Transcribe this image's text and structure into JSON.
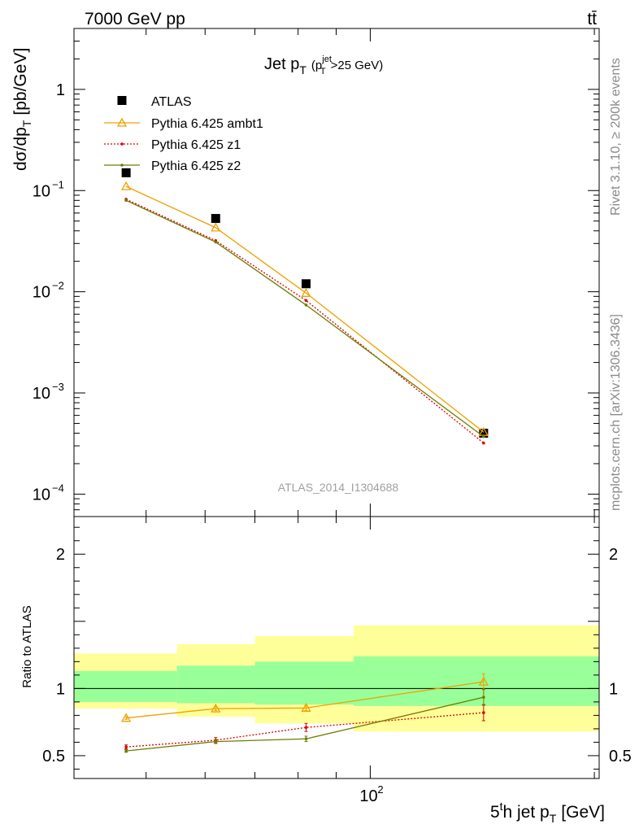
{
  "header": {
    "left": "7000 GeV pp",
    "right": "tt̄"
  },
  "side_text": {
    "rivet": "Rivet 3.1.10, ≥ 200k events",
    "mcplots": "mcplots.cern.ch [arXiv:1306.3436]"
  },
  "colors": {
    "ATLAS": "#000000",
    "Pythia 6.425 ambt1": "#f0a000",
    "Pythia 6.425 z1": "#e00000",
    "Pythia 6.425 z2": "#6e7d00",
    "band_outer": "#ffff99",
    "band_inner": "#99ff99"
  },
  "chart_data": [
    {
      "type": "scatter",
      "panel": "main",
      "title": "Jet p_T (p_T^jet>25 GeV)",
      "ylabel": "dσ/dp_T [pb/GeV]",
      "annotation": "ATLAS_2014_I1304688",
      "yscale": "log",
      "ylim": [
        6e-05,
        4
      ],
      "xscale": "log",
      "xlim": [
        40,
        203
      ],
      "x": [
        47,
        62,
        82,
        142
      ],
      "bins": [
        [
          40,
          55
        ],
        [
          55,
          70
        ],
        [
          70,
          95
        ],
        [
          95,
          200
        ]
      ],
      "legend_position": "top-left",
      "series": [
        {
          "name": "ATLAS",
          "marker": "square",
          "values": [
            0.15,
            0.053,
            0.012,
            0.0004
          ]
        },
        {
          "name": "Pythia 6.425 ambt1",
          "marker": "triangle",
          "line": "solid",
          "values": [
            0.11,
            0.043,
            0.0097,
            0.00041
          ]
        },
        {
          "name": "Pythia 6.425 z1",
          "marker": "dot",
          "line": "dotted",
          "values": [
            0.082,
            0.032,
            0.0082,
            0.00032
          ]
        },
        {
          "name": "Pythia 6.425 z2",
          "marker": "dot",
          "line": "solid",
          "values": [
            0.08,
            0.031,
            0.0074,
            0.00037
          ]
        }
      ]
    },
    {
      "type": "line",
      "panel": "ratio",
      "ylabel": "Ratio to ATLAS",
      "xlabel": "5^th jet p_T [GeV]",
      "ylim": [
        0.33,
        2.28
      ],
      "xscale": "log",
      "xlim": [
        40,
        203
      ],
      "x": [
        47,
        62,
        82,
        142
      ],
      "reference_line": 1,
      "bands": {
        "bins": [
          [
            40,
            55
          ],
          [
            55,
            70
          ],
          [
            70,
            95
          ],
          [
            95,
            203
          ]
        ],
        "outer_low": [
          0.85,
          0.79,
          0.74,
          0.68
        ],
        "outer_high": [
          1.26,
          1.33,
          1.39,
          1.47
        ],
        "inner_low": [
          0.9,
          0.89,
          0.88,
          0.87
        ],
        "inner_high": [
          1.13,
          1.17,
          1.2,
          1.24
        ]
      },
      "series": [
        {
          "name": "Pythia 6.425 ambt1",
          "values": [
            0.78,
            0.85,
            0.855,
            1.05
          ],
          "errors": [
            0.01,
            0.015,
            0.02,
            0.06
          ]
        },
        {
          "name": "Pythia 6.425 z1",
          "values": [
            0.565,
            0.615,
            0.71,
            0.82
          ],
          "errors": [
            0.015,
            0.02,
            0.03,
            0.06
          ]
        },
        {
          "name": "Pythia 6.425 z2",
          "values": [
            0.535,
            0.605,
            0.625,
            0.935
          ],
          "errors": [
            0.01,
            0.015,
            0.02,
            0.06
          ]
        }
      ]
    }
  ]
}
